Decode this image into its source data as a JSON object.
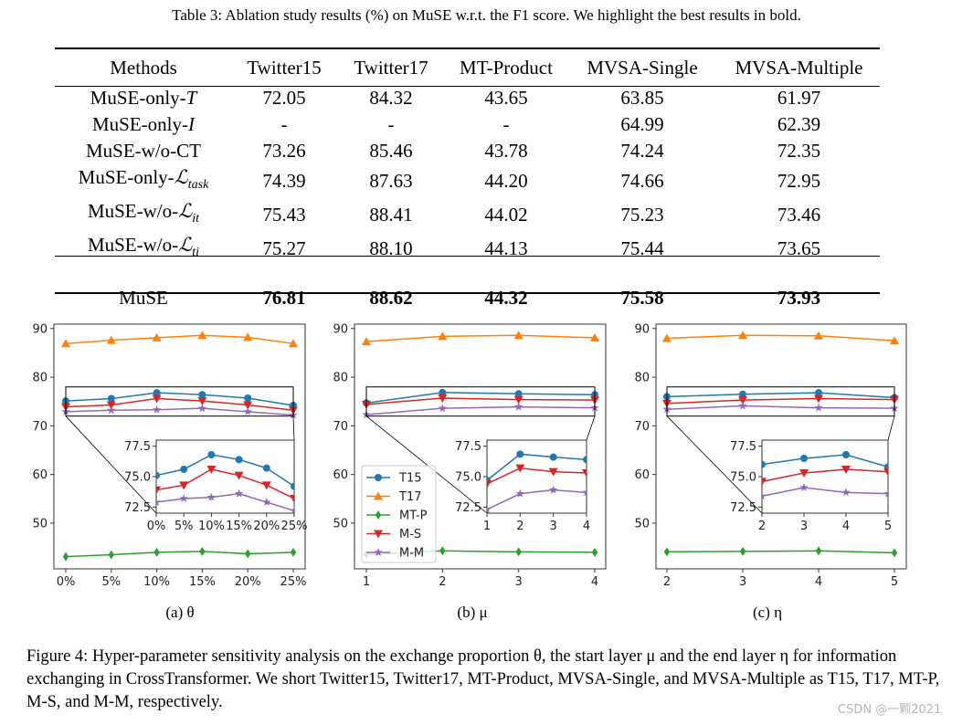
{
  "table": {
    "caption": "Table 3: Ablation study results (%) on MuSE w.r.t. the F1 score. We highlight the best results in bold.",
    "headers": [
      "Methods",
      "Twitter15",
      "Twitter17",
      "MT-Product",
      "MVSA-Single",
      "MVSA-Multiple"
    ],
    "rows": [
      {
        "method": {
          "prefix": "MuSE-only-",
          "math": "T",
          "sub": ""
        },
        "values": [
          "72.05",
          "84.32",
          "43.65",
          "63.85",
          "61.97"
        ]
      },
      {
        "method": {
          "prefix": "MuSE-only-",
          "math": "I",
          "sub": ""
        },
        "values": [
          "-",
          "-",
          "-",
          "64.99",
          "62.39"
        ]
      },
      {
        "method": {
          "prefix": "MuSE-w/o-CT",
          "math": "",
          "sub": ""
        },
        "values": [
          "73.26",
          "85.46",
          "43.78",
          "74.24",
          "72.35"
        ]
      },
      {
        "method": {
          "prefix": "MuSE-only-",
          "math": "ℒ",
          "sub": "task"
        },
        "values": [
          "74.39",
          "87.63",
          "44.20",
          "74.66",
          "72.95"
        ]
      },
      {
        "method": {
          "prefix": "MuSE-w/o-",
          "math": "ℒ",
          "sub": "it"
        },
        "values": [
          "75.43",
          "88.41",
          "44.02",
          "75.23",
          "73.46"
        ]
      },
      {
        "method": {
          "prefix": "MuSE-w/o-",
          "math": "ℒ",
          "sub": "ti"
        },
        "values": [
          "75.27",
          "88.10",
          "44.13",
          "75.44",
          "73.65"
        ]
      }
    ],
    "final_row": {
      "method": {
        "prefix": "MuSE",
        "math": "",
        "sub": ""
      },
      "values": [
        "76.81",
        "88.62",
        "44.32",
        "75.58",
        "73.93"
      ],
      "bold": true
    }
  },
  "chart_data": [
    {
      "type": "line",
      "sublabel": "(a) θ",
      "categories": [
        "0%",
        "5%",
        "10%",
        "15%",
        "20%",
        "25%"
      ],
      "x": [
        0,
        5,
        10,
        15,
        20,
        25
      ],
      "ylim": [
        40.6,
        90.9
      ],
      "yticks": [
        "50",
        "60",
        "70",
        "80",
        "90"
      ],
      "grid": false,
      "series": [
        {
          "name": "T15",
          "color": "#1f77b4",
          "marker": "circle",
          "values": [
            75.1,
            75.6,
            76.8,
            76.4,
            75.7,
            74.2
          ]
        },
        {
          "name": "T17",
          "color": "#ff7f0e",
          "marker": "triangle-up",
          "values": [
            86.9,
            87.6,
            88.1,
            88.6,
            88.2,
            86.9
          ]
        },
        {
          "name": "MT-P",
          "color": "#2ca02c",
          "marker": "thin-diamond",
          "values": [
            43.1,
            43.5,
            44.0,
            44.2,
            43.7,
            44.0
          ]
        },
        {
          "name": "M-S",
          "color": "#d62728",
          "marker": "triangle-down",
          "values": [
            73.9,
            74.3,
            75.6,
            75.1,
            74.3,
            73.2
          ]
        },
        {
          "name": "M-M",
          "color": "#9467bd",
          "marker": "star",
          "values": [
            72.9,
            73.2,
            73.3,
            73.6,
            72.9,
            72.2
          ]
        }
      ],
      "inset": {
        "xlim": [
          0,
          25
        ],
        "ylim": [
          72.0,
          78.0
        ],
        "yticks": [
          "72.5",
          "75.0",
          "77.5"
        ],
        "xticks": [
          "0%",
          "5%",
          "10%",
          "15%",
          "20%",
          "25%"
        ],
        "series": [
          "T15",
          "M-S",
          "M-M"
        ]
      },
      "legend": null
    },
    {
      "type": "line",
      "sublabel": "(b) μ",
      "categories": [
        "1",
        "2",
        "3",
        "4"
      ],
      "x": [
        1,
        2,
        3,
        4
      ],
      "ylim": [
        40.6,
        90.9
      ],
      "yticks": [
        "50",
        "60",
        "70",
        "80",
        "90"
      ],
      "grid": false,
      "series": [
        {
          "name": "T15",
          "color": "#1f77b4",
          "marker": "circle",
          "values": [
            74.7,
            76.85,
            76.6,
            76.4
          ]
        },
        {
          "name": "T17",
          "color": "#ff7f0e",
          "marker": "triangle-up",
          "values": [
            87.3,
            88.4,
            88.6,
            88.1
          ]
        },
        {
          "name": "MT-P",
          "color": "#2ca02c",
          "marker": "thin-diamond",
          "values": [
            43.5,
            44.3,
            44.1,
            44.0
          ]
        },
        {
          "name": "M-S",
          "color": "#d62728",
          "marker": "triangle-down",
          "values": [
            74.4,
            75.7,
            75.4,
            75.3
          ]
        },
        {
          "name": "M-M",
          "color": "#9467bd",
          "marker": "star",
          "values": [
            72.3,
            73.6,
            73.9,
            73.7
          ]
        }
      ],
      "inset": {
        "xlim": [
          1,
          4
        ],
        "ylim": [
          72.0,
          78.0
        ],
        "yticks": [
          "72.5",
          "75.0",
          "77.5"
        ],
        "xticks": [
          "1",
          "2",
          "3",
          "4"
        ],
        "series": [
          "T15",
          "M-S",
          "M-M"
        ]
      },
      "legend": "lower-left"
    },
    {
      "type": "line",
      "sublabel": "(c) η",
      "categories": [
        "2",
        "3",
        "4",
        "5"
      ],
      "x": [
        2,
        3,
        4,
        5
      ],
      "ylim": [
        40.6,
        90.9
      ],
      "yticks": [
        "50",
        "60",
        "70",
        "80",
        "90"
      ],
      "grid": false,
      "series": [
        {
          "name": "T15",
          "color": "#1f77b4",
          "marker": "circle",
          "values": [
            76.0,
            76.5,
            76.8,
            75.8
          ]
        },
        {
          "name": "T17",
          "color": "#ff7f0e",
          "marker": "triangle-up",
          "values": [
            88.0,
            88.6,
            88.5,
            87.5
          ]
        },
        {
          "name": "MT-P",
          "color": "#2ca02c",
          "marker": "thin-diamond",
          "values": [
            44.1,
            44.2,
            44.3,
            43.9
          ]
        },
        {
          "name": "M-S",
          "color": "#d62728",
          "marker": "triangle-down",
          "values": [
            74.6,
            75.3,
            75.6,
            75.4
          ]
        },
        {
          "name": "M-M",
          "color": "#9467bd",
          "marker": "star",
          "values": [
            73.4,
            74.1,
            73.7,
            73.6
          ]
        }
      ],
      "inset": {
        "xlim": [
          2,
          5
        ],
        "ylim": [
          72.0,
          78.0
        ],
        "yticks": [
          "72.5",
          "75.0",
          "77.5"
        ],
        "xticks": [
          "2",
          "3",
          "4",
          "5"
        ],
        "series": [
          "T15",
          "M-S",
          "M-M"
        ]
      },
      "legend": null
    }
  ],
  "figure_caption": "Figure 4: Hyper-parameter sensitivity analysis on the exchange proportion θ, the start layer μ and the end layer η for information exchanging in CrossTransformer. We short Twitter15, Twitter17, MT-Product, MVSA-Single, and MVSA-Multiple as T15, T17, MT-P, M-S, and M-M, respectively.",
  "watermark": "CSDN @一颗2021"
}
